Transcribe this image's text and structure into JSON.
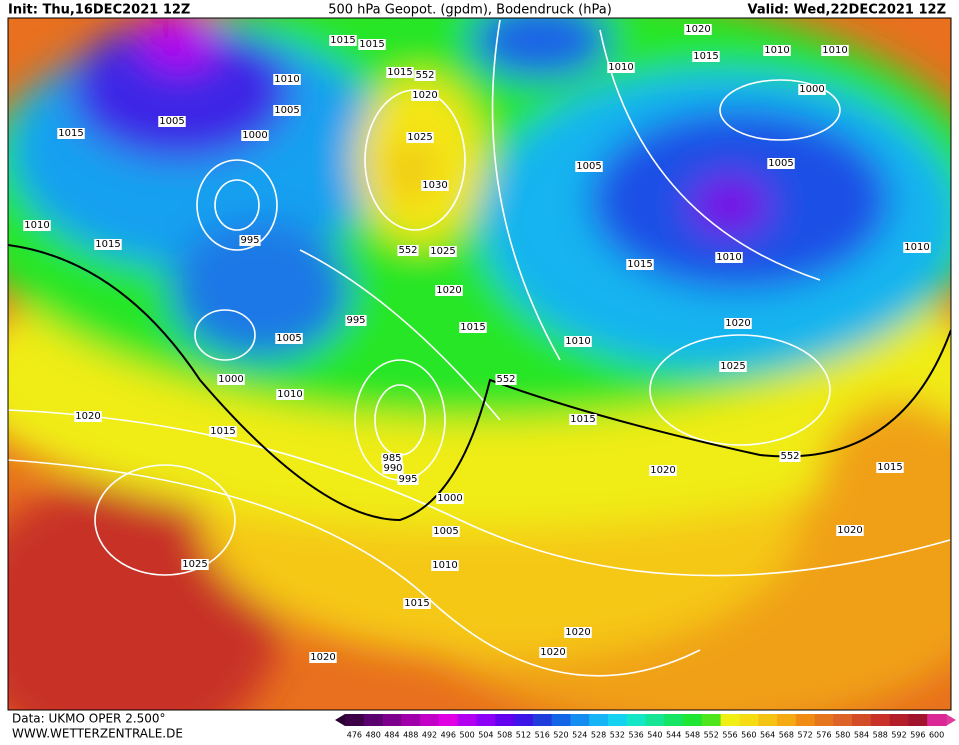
{
  "header": {
    "init": "Init: Thu,16DEC2021 12Z",
    "title": "500 hPa Geopot. (gpdm), Bodendruck (hPa)",
    "valid": "Valid: Wed,22DEC2021 12Z"
  },
  "footer": {
    "data": "Data: UKMO OPER 2.500°",
    "site": "WWW.WETTERZENTRALE.DE"
  },
  "isobar_labels": [
    "1015",
    "1015",
    "1010",
    "1015",
    "552",
    "1020",
    "1005",
    "1005",
    "1000",
    "1015",
    "1025",
    "1030",
    "1010",
    "995",
    "1015",
    "552",
    "1025",
    "1020",
    "995",
    "1015",
    "1005",
    "1000",
    "1010",
    "1020",
    "1015",
    "985",
    "990",
    "995",
    "1000",
    "1005",
    "1010",
    "1025",
    "1015",
    "1020",
    "1020",
    "1020",
    "1020",
    "1015",
    "1010",
    "1010",
    "1010",
    "1000",
    "1005",
    "1005",
    "1015",
    "1010",
    "1010",
    "1020",
    "1010",
    "552",
    "1025",
    "1015",
    "552",
    "1020",
    "1015",
    "1020"
  ],
  "colorbar": {
    "values": [
      476,
      480,
      484,
      488,
      492,
      496,
      500,
      504,
      508,
      512,
      516,
      520,
      524,
      528,
      532,
      536,
      540,
      544,
      548,
      552,
      556,
      560,
      564,
      568,
      572,
      576,
      580,
      584,
      588,
      592,
      596,
      600
    ],
    "colors": [
      "#3c0046",
      "#5a006e",
      "#7d008c",
      "#a000aa",
      "#c300c8",
      "#e100e6",
      "#b400f0",
      "#8c00f5",
      "#6400f0",
      "#3c14e6",
      "#1e3cdc",
      "#1464e6",
      "#148cf0",
      "#14b4f5",
      "#14d2f0",
      "#14e6c8",
      "#14e696",
      "#14e664",
      "#1ee632",
      "#50e61e",
      "#f0f014",
      "#f5dc14",
      "#f5c314",
      "#f5aa14",
      "#f08c14",
      "#e6761e",
      "#dc6428",
      "#d24c28",
      "#c83228",
      "#b41e28",
      "#a0142d",
      "#dc2896"
    ]
  }
}
